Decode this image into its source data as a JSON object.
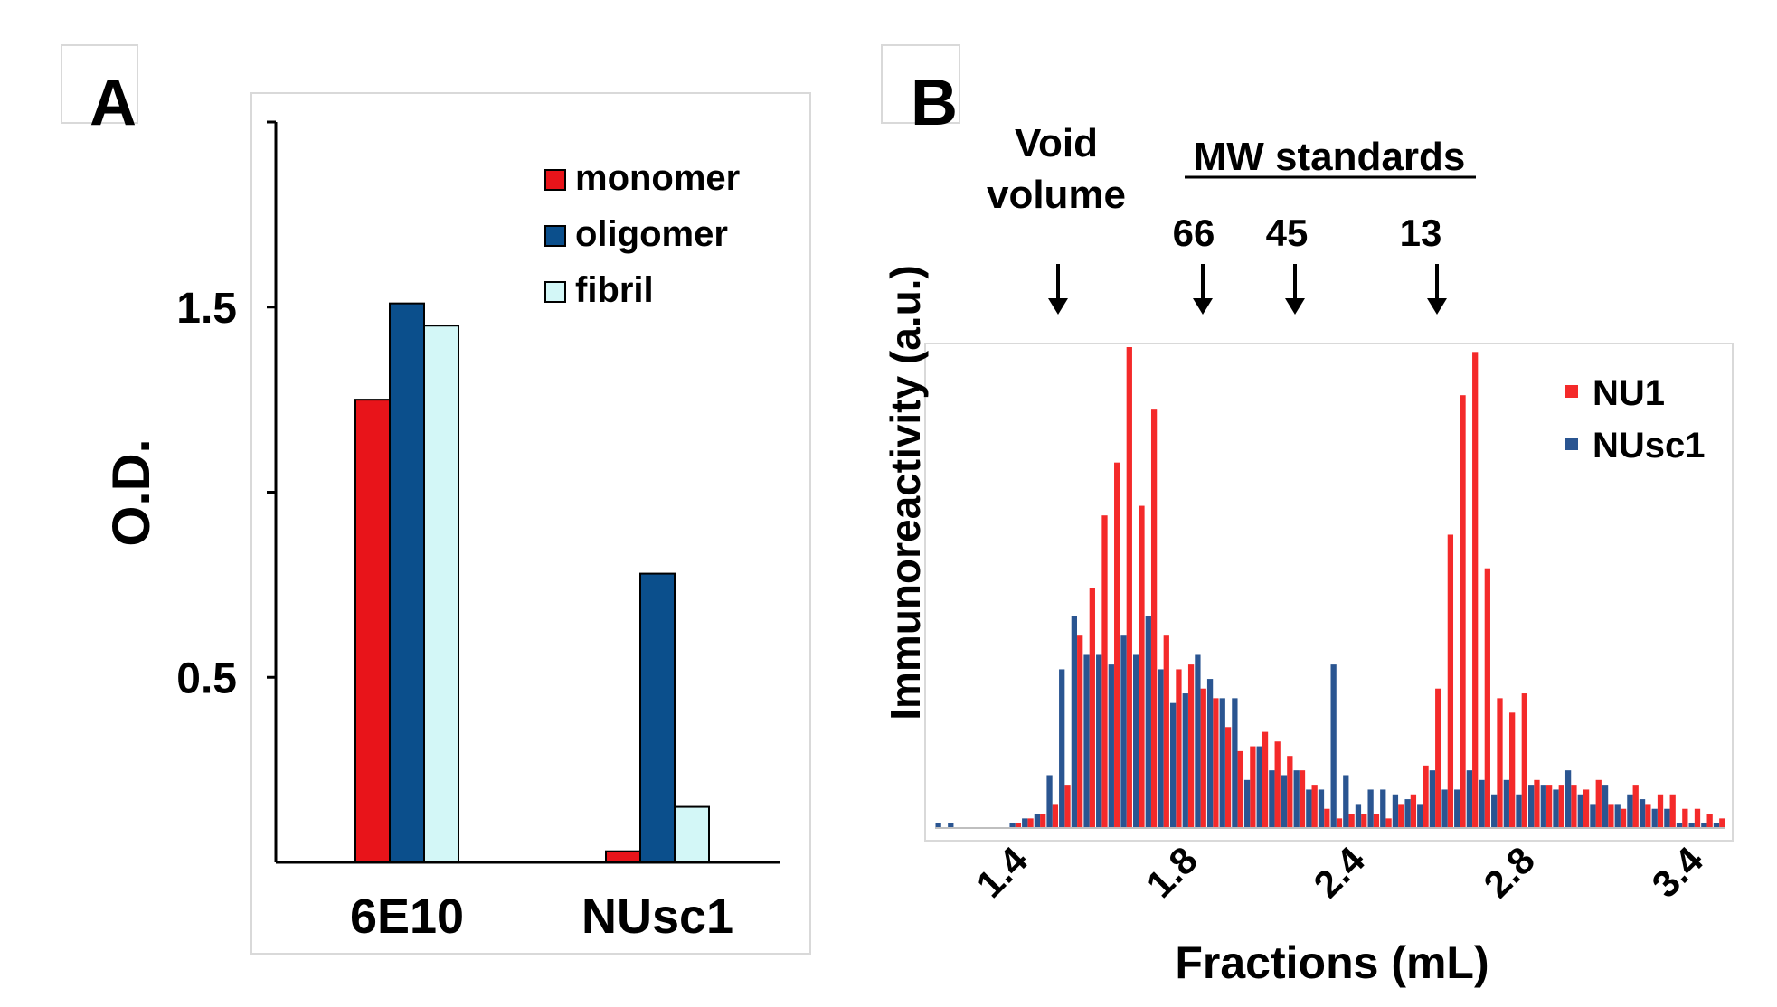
{
  "colors": {
    "monomer": "#e8141a",
    "oligomer": "#0b4f8c",
    "fibril": "#d3f7f7",
    "nu1": "#f42a2a",
    "nusc1": "#2a5591",
    "axis": "#000000",
    "frame": "#d9d9d9"
  },
  "chart_data": [
    {
      "panel": "A",
      "type": "bar",
      "ylabel": "O.D.",
      "categories": [
        "6E10",
        "NUsc1"
      ],
      "yticks": [
        "0.5",
        "1.5"
      ],
      "ylim": [
        0,
        2.0
      ],
      "legend_position": "top-right",
      "series": [
        {
          "name": "monomer",
          "values": [
            1.25,
            0.03
          ]
        },
        {
          "name": "oligomer",
          "values": [
            1.51,
            0.78
          ]
        },
        {
          "name": "fibril",
          "values": [
            1.45,
            0.15
          ]
        }
      ]
    },
    {
      "panel": "B",
      "type": "bar",
      "xlabel": "Fractions (mL)",
      "ylabel": "Immunoreactivity (a.u.)",
      "xticks": [
        "1.4",
        "1.8",
        "2.4",
        "2.8",
        "3.4"
      ],
      "ylim": [
        0,
        100
      ],
      "legend_position": "top-right",
      "annotations": {
        "void": {
          "line1": "Void",
          "line2": "volume"
        },
        "standards_title": "MW standards",
        "markers": [
          "66",
          "45",
          "13"
        ]
      },
      "series": [
        {
          "name": "NU1",
          "values": [
            0,
            0,
            0,
            0,
            0,
            0,
            1,
            2,
            3,
            5,
            9,
            40,
            50,
            65,
            76,
            100,
            67,
            87,
            40,
            33,
            34,
            29,
            27,
            21,
            16,
            17,
            20,
            18,
            15,
            12,
            9,
            4,
            2,
            3,
            3,
            3,
            2,
            5,
            7,
            13,
            29,
            61,
            90,
            99,
            54,
            27,
            24,
            28,
            10,
            9,
            9,
            9,
            8,
            10,
            5,
            4,
            9,
            5,
            7,
            7,
            4,
            4,
            3,
            2
          ]
        },
        {
          "name": "NUsc1",
          "values": [
            1,
            1,
            0,
            0,
            0,
            0,
            1,
            2,
            3,
            11,
            33,
            44,
            36,
            36,
            34,
            40,
            36,
            44,
            33,
            26,
            28,
            36,
            31,
            27,
            27,
            10,
            17,
            12,
            11,
            12,
            8,
            8,
            34,
            11,
            5,
            8,
            8,
            7,
            6,
            5,
            12,
            8,
            8,
            12,
            10,
            7,
            10,
            7,
            9,
            9,
            8,
            12,
            7,
            5,
            9,
            5,
            7,
            6,
            4,
            4,
            1,
            1,
            1,
            1
          ]
        }
      ]
    }
  ]
}
